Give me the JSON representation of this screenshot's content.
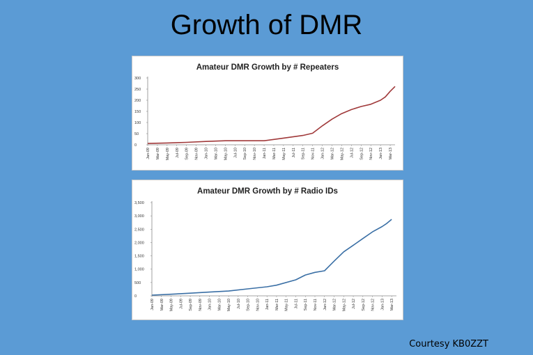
{
  "slide": {
    "title": "Growth of DMR",
    "credit": "Courtesy KB0ZZT"
  },
  "chart_data": [
    {
      "type": "line",
      "title": "Amateur DMR Growth by # Repeaters",
      "color": "#a0393a",
      "ylim": [
        0,
        300
      ],
      "y_ticks": [
        "300",
        "250",
        "200",
        "150",
        "100",
        "50",
        "0"
      ],
      "categories": [
        "Jan-09",
        "Mar-09",
        "May-09",
        "Jul-09",
        "Sep-09",
        "Nov-09",
        "Jan-10",
        "Mar-10",
        "May-10",
        "Jul-10",
        "Sep-10",
        "Nov-10",
        "Jan-11",
        "Mar-11",
        "May-11",
        "Jul-11",
        "Sep-11",
        "Nov-11",
        "Jan-12",
        "Mar-12",
        "May-12",
        "Jul-12",
        "Sep-12",
        "Nov-12",
        "Jan-13",
        "Mar-13"
      ],
      "x_positions": [
        0,
        2,
        4,
        6,
        8,
        10,
        12,
        14,
        16,
        18,
        20,
        22,
        24,
        26,
        28,
        30,
        32,
        34,
        36,
        38,
        40,
        42,
        44,
        46,
        48,
        50
      ],
      "points": [
        [
          0,
          6
        ],
        [
          4,
          8
        ],
        [
          8,
          11
        ],
        [
          12,
          15
        ],
        [
          16,
          18
        ],
        [
          20,
          18
        ],
        [
          24,
          18
        ],
        [
          28,
          30
        ],
        [
          32,
          42
        ],
        [
          34,
          52
        ],
        [
          36,
          85
        ],
        [
          38,
          115
        ],
        [
          40,
          140
        ],
        [
          42,
          158
        ],
        [
          44,
          172
        ],
        [
          46,
          182
        ],
        [
          48,
          200
        ],
        [
          49,
          215
        ],
        [
          50,
          240
        ],
        [
          51,
          262
        ]
      ]
    },
    {
      "type": "line",
      "title": "Amateur DMR Growth by # Radio IDs",
      "color": "#3a6fa5",
      "ylim": [
        0,
        3500
      ],
      "y_ticks": [
        "3,500",
        "3,000",
        "2,500",
        "2,000",
        "1,500",
        "1,000",
        "500",
        "0"
      ],
      "categories": [
        "Jan-09",
        "Mar-09",
        "May-09",
        "Jul-09",
        "Sep-09",
        "Nov-09",
        "Jan-10",
        "Mar-10",
        "May-10",
        "Jul-10",
        "Sep-10",
        "Nov-10",
        "Jan-11",
        "Mar-11",
        "May-11",
        "Jul-11",
        "Sep-11",
        "Nov-11",
        "Jan-12",
        "Mar-12",
        "May-12",
        "Jul-12",
        "Sep-12",
        "Nov-12",
        "Jan-13",
        "Mar-13"
      ],
      "x_positions": [
        0,
        2,
        4,
        6,
        8,
        10,
        12,
        14,
        16,
        18,
        20,
        22,
        24,
        26,
        28,
        30,
        32,
        34,
        36,
        38,
        40,
        42,
        44,
        46,
        48,
        50
      ],
      "points": [
        [
          0,
          25
        ],
        [
          4,
          60
        ],
        [
          8,
          100
        ],
        [
          12,
          140
        ],
        [
          16,
          180
        ],
        [
          20,
          260
        ],
        [
          24,
          340
        ],
        [
          26,
          400
        ],
        [
          30,
          600
        ],
        [
          32,
          780
        ],
        [
          34,
          880
        ],
        [
          36,
          940
        ],
        [
          38,
          1300
        ],
        [
          40,
          1650
        ],
        [
          42,
          1900
        ],
        [
          44,
          2150
        ],
        [
          46,
          2400
        ],
        [
          48,
          2600
        ],
        [
          49,
          2720
        ],
        [
          50,
          2870
        ]
      ]
    }
  ]
}
